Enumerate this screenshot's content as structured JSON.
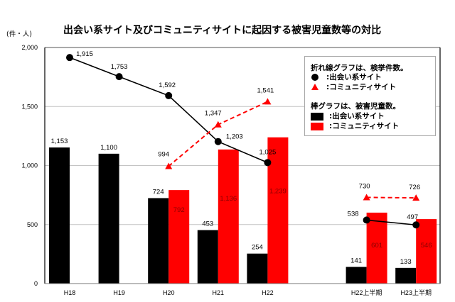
{
  "header": {
    "unit_label": "(件・人)",
    "title": "出会い系サイト及びコミュニティサイトに起因する被害児童数等の対比"
  },
  "legend": {
    "line_heading": "折れ線グラフは、検挙件数。",
    "line_items": [
      {
        "marker": "circle",
        "color": "#000000",
        "label": ":出会い系サイト"
      },
      {
        "marker": "triangle",
        "color": "#ff0000",
        "label": ":コミュニティサイト"
      }
    ],
    "bar_heading": "棒グラフは、被害児童数。",
    "bar_items": [
      {
        "marker": "square",
        "color": "#000000",
        "label": ":出会い系サイト"
      },
      {
        "marker": "square",
        "color": "#ff0000",
        "label": ":コミュニティサイト"
      }
    ]
  },
  "chart_data": {
    "type": "bar",
    "title": "出会い系サイト及びコミュニティサイトに起因する被害児童数等の対比",
    "xlabel": "",
    "ylabel": "(件・人)",
    "ylim": [
      0,
      2000
    ],
    "yticks": [
      0,
      500,
      1000,
      1500,
      2000
    ],
    "ytick_labels": [
      "0",
      "500",
      "1,000",
      "1,500",
      "2,000"
    ],
    "grid": true,
    "legend_position": "top-right",
    "categories": [
      "H18",
      "H19",
      "H20",
      "H21",
      "H22",
      "H22上半期",
      "H23上半期"
    ],
    "series": [
      {
        "name": "出会い系サイト",
        "kind": "bar",
        "measure": "被害児童数",
        "color": "#000000",
        "values": [
          1153,
          1100,
          724,
          453,
          254,
          141,
          133
        ],
        "labels": [
          "1,153",
          "1,100",
          "724",
          "453",
          "254",
          "141",
          "133"
        ]
      },
      {
        "name": "コミュニティサイト",
        "kind": "bar",
        "measure": "被害児童数",
        "color": "#ff0000",
        "label_color": "#8b0000",
        "values": [
          null,
          null,
          792,
          1136,
          1239,
          601,
          546
        ],
        "labels": [
          null,
          null,
          "792",
          "1,136",
          "1,239",
          "601",
          "546"
        ]
      },
      {
        "name": "出会い系サイト",
        "kind": "line",
        "measure": "検挙件数",
        "color": "#000000",
        "marker": "circle",
        "line_style": "solid",
        "segments": [
          [
            0,
            4
          ],
          [
            5,
            6
          ]
        ],
        "values": [
          1915,
          1753,
          1592,
          1203,
          1025,
          538,
          497
        ],
        "labels": [
          "1,915",
          "1,753",
          "1,592",
          "1,203",
          "1,025",
          "538",
          "497"
        ]
      },
      {
        "name": "コミュニティサイト",
        "kind": "line",
        "measure": "検挙件数",
        "color": "#ff0000",
        "marker": "triangle",
        "line_style": "dashed",
        "segments": [
          [
            2,
            4
          ],
          [
            5,
            6
          ]
        ],
        "values": [
          null,
          null,
          994,
          1347,
          1541,
          730,
          726
        ],
        "labels": [
          null,
          null,
          "994",
          "1,347",
          "1,541",
          "730",
          "726"
        ]
      }
    ]
  }
}
